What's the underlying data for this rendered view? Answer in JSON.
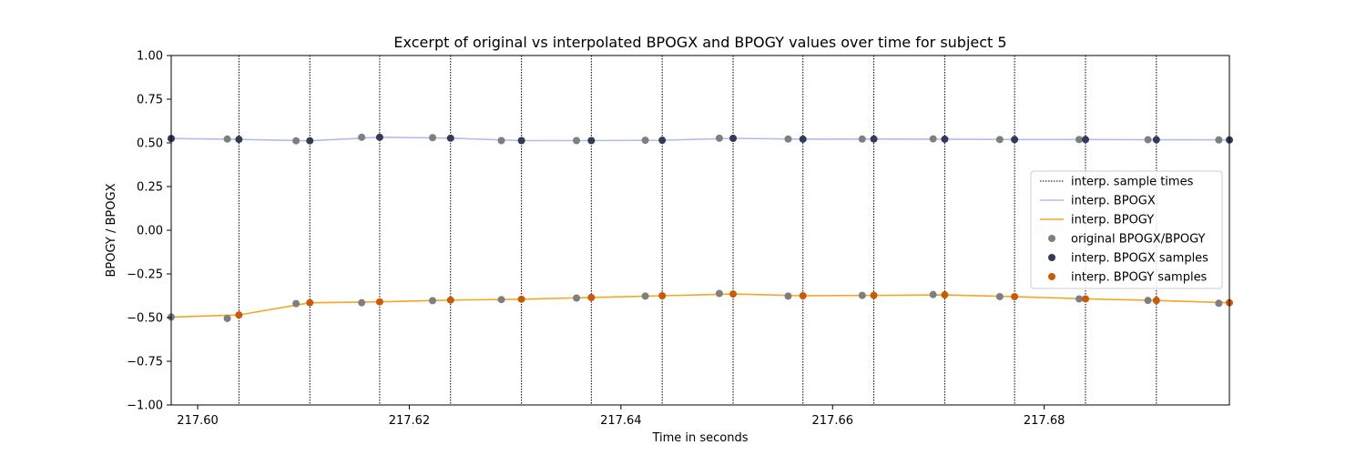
{
  "chart_data": {
    "type": "line",
    "title": "Excerpt of original vs interpolated BPOGX and BPOGY values over time for subject 5",
    "xlabel": "Time in seconds",
    "ylabel": "BPOGY / BPOGX",
    "xlim": [
      217.5975,
      217.6975
    ],
    "ylim": [
      -1.0,
      1.0
    ],
    "x_ticks": [
      217.6,
      217.62,
      217.64,
      217.66,
      217.68
    ],
    "x_tick_labels": [
      "217.60",
      "217.62",
      "217.64",
      "217.66",
      "217.68"
    ],
    "y_ticks": [
      1.0,
      0.75,
      0.5,
      0.25,
      0.0,
      -0.25,
      -0.5,
      -0.75,
      -1.0
    ],
    "y_tick_labels": [
      "1.00",
      "0.75",
      "0.50",
      "0.25",
      "0.00",
      "−0.25",
      "−0.50",
      "−0.75",
      "−1.00"
    ],
    "grid": false,
    "legend_position": "center-right",
    "sample_times": [
      217.6039,
      217.6106,
      217.6172,
      217.6239,
      217.6306,
      217.6372,
      217.6439,
      217.6506,
      217.6572,
      217.6639,
      217.6706,
      217.6772,
      217.6839,
      217.6906
    ],
    "series": [
      {
        "name": "interp. BPOGX",
        "kind": "line",
        "color": "#b0bcf0",
        "x": [
          217.5975,
          217.6039,
          217.6106,
          217.6172,
          217.6239,
          217.6306,
          217.6372,
          217.6439,
          217.6506,
          217.6572,
          217.6639,
          217.6706,
          217.6772,
          217.6839,
          217.6906,
          217.6975
        ],
        "values": [
          0.525,
          0.52,
          0.512,
          0.532,
          0.527,
          0.513,
          0.513,
          0.515,
          0.526,
          0.521,
          0.522,
          0.521,
          0.519,
          0.519,
          0.518,
          0.517
        ]
      },
      {
        "name": "interp. BPOGY",
        "kind": "line",
        "color": "#f5a623",
        "x": [
          217.5975,
          217.6039,
          217.6106,
          217.6172,
          217.6239,
          217.6306,
          217.6372,
          217.6439,
          217.6506,
          217.6572,
          217.6639,
          217.6706,
          217.6772,
          217.6839,
          217.6906,
          217.6975
        ],
        "values": [
          -0.497,
          -0.485,
          -0.415,
          -0.41,
          -0.4,
          -0.395,
          -0.385,
          -0.375,
          -0.365,
          -0.375,
          -0.373,
          -0.37,
          -0.38,
          -0.393,
          -0.402,
          -0.415
        ]
      },
      {
        "name": "original BPOGX/BPOGY",
        "kind": "scatter",
        "color": "#7f7f7f",
        "x": [
          217.5975,
          217.6028,
          217.6093,
          217.6155,
          217.6222,
          217.6287,
          217.6358,
          217.6423,
          217.6493,
          217.6558,
          217.6628,
          217.6695,
          217.6758,
          217.6833,
          217.6898,
          217.6965
        ],
        "values_x": [
          0.525,
          0.522,
          0.512,
          0.532,
          0.53,
          0.513,
          0.513,
          0.515,
          0.527,
          0.522,
          0.522,
          0.523,
          0.519,
          0.519,
          0.518,
          0.517
        ],
        "values_y": [
          -0.497,
          -0.505,
          -0.42,
          -0.415,
          -0.403,
          -0.397,
          -0.388,
          -0.377,
          -0.362,
          -0.377,
          -0.373,
          -0.368,
          -0.38,
          -0.393,
          -0.402,
          -0.418
        ]
      },
      {
        "name": "interp. BPOGX samples",
        "kind": "scatter",
        "color": "#333a57",
        "x": [
          217.5975,
          217.6039,
          217.6106,
          217.6172,
          217.6239,
          217.6306,
          217.6372,
          217.6439,
          217.6506,
          217.6572,
          217.6639,
          217.6706,
          217.6772,
          217.6839,
          217.6906,
          217.6975
        ],
        "values": [
          0.525,
          0.52,
          0.512,
          0.532,
          0.527,
          0.513,
          0.513,
          0.515,
          0.526,
          0.521,
          0.522,
          0.521,
          0.519,
          0.519,
          0.518,
          0.517
        ]
      },
      {
        "name": "interp. BPOGY samples",
        "kind": "scatter",
        "color": "#c85a0a",
        "x": [
          217.6039,
          217.6106,
          217.6172,
          217.6239,
          217.6306,
          217.6372,
          217.6439,
          217.6506,
          217.6572,
          217.6639,
          217.6706,
          217.6772,
          217.6839,
          217.6906,
          217.6975
        ],
        "values": [
          -0.485,
          -0.415,
          -0.41,
          -0.4,
          -0.395,
          -0.385,
          -0.375,
          -0.365,
          -0.375,
          -0.373,
          -0.37,
          -0.38,
          -0.393,
          -0.402,
          -0.415
        ]
      }
    ],
    "legend": [
      {
        "label": "interp. sample times",
        "kind": "dotted-line",
        "color": "#000000"
      },
      {
        "label": "interp. BPOGX",
        "kind": "line",
        "color": "#b0bcf0"
      },
      {
        "label": "interp. BPOGY",
        "kind": "line",
        "color": "#f5a623"
      },
      {
        "label": "original BPOGX/BPOGY",
        "kind": "marker",
        "color": "#7f7f7f"
      },
      {
        "label": "interp. BPOGX samples",
        "kind": "marker",
        "color": "#333a57"
      },
      {
        "label": "interp. BPOGY samples",
        "kind": "marker",
        "color": "#c85a0a"
      }
    ]
  }
}
